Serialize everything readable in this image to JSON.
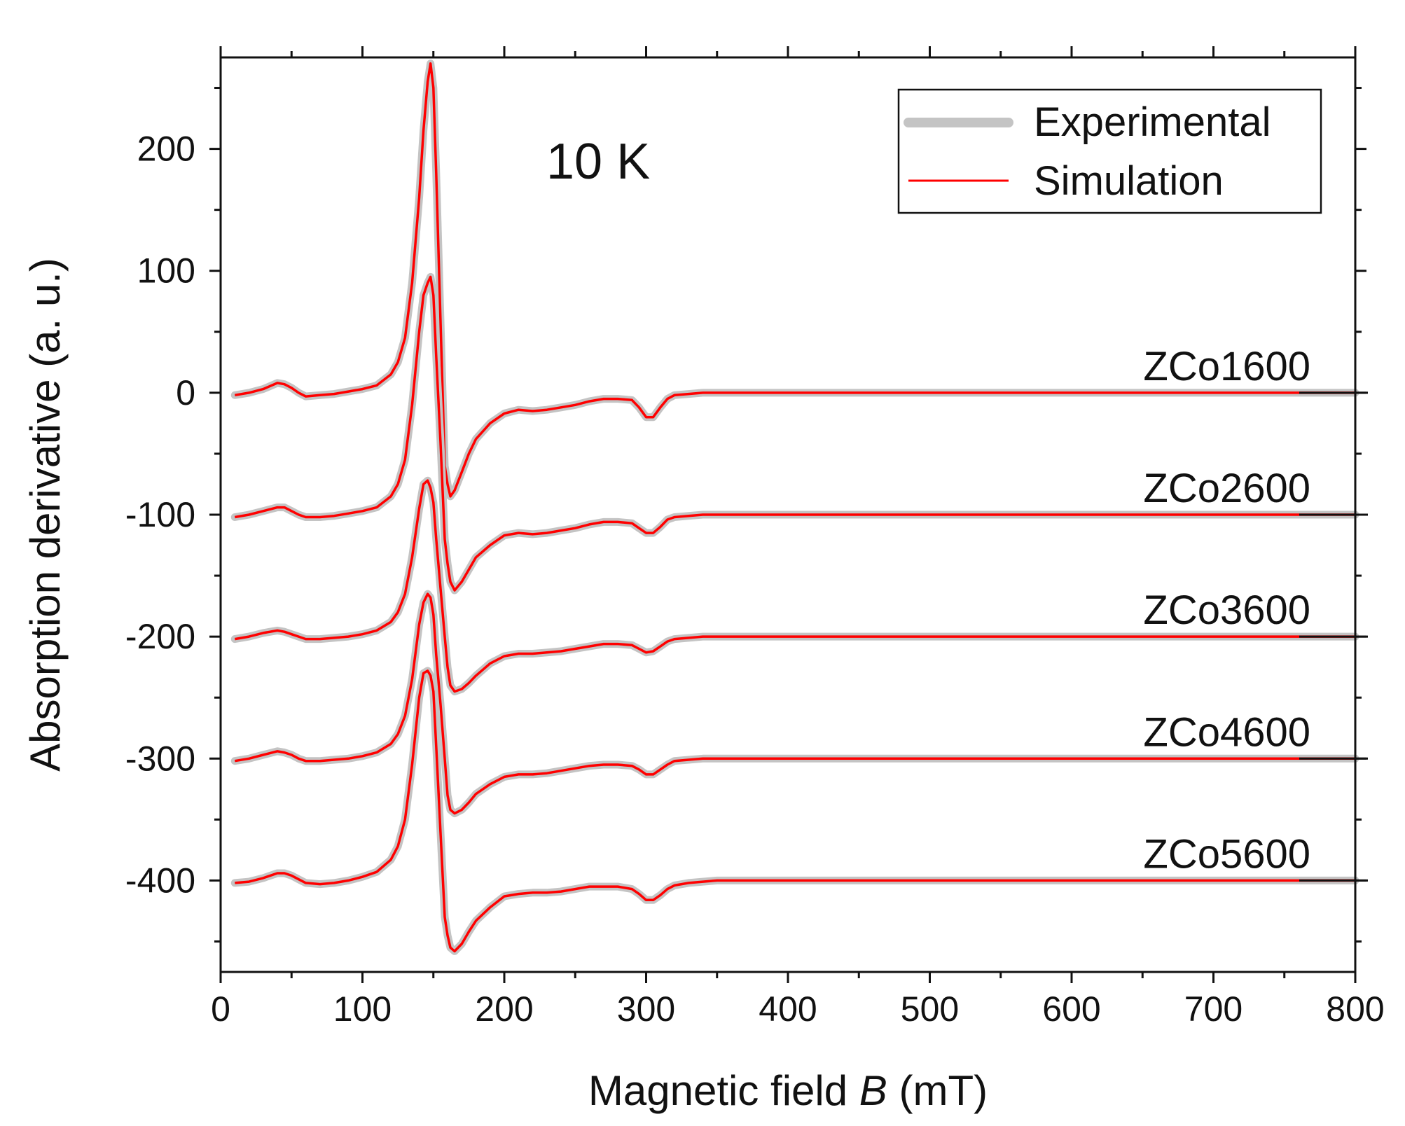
{
  "chart_data": {
    "type": "line",
    "xlabel_prefix": "Magnetic field ",
    "xlabel_var": "B",
    "xlabel_suffix": " (mT)",
    "ylabel": "Absorption derivative (a. u.)",
    "annotation": "10 K",
    "xlim": [
      0,
      800
    ],
    "ylim": [
      -475,
      275
    ],
    "x_ticks": [
      0,
      100,
      200,
      300,
      400,
      500,
      600,
      700,
      800
    ],
    "y_ticks": [
      200,
      100,
      0,
      -100,
      -200,
      -300,
      -400
    ],
    "grid": false,
    "legend_position": "top-right",
    "legend": [
      {
        "label": "Experimental",
        "color": "#c4c4c4"
      },
      {
        "label": "Simulation",
        "color": "#ff0000"
      }
    ],
    "shape_x": [
      10,
      20,
      30,
      40,
      45,
      50,
      55,
      60,
      70,
      80,
      90,
      100,
      110,
      120,
      125,
      130,
      135,
      140,
      143,
      146,
      148,
      150,
      152,
      155,
      158,
      160,
      162,
      165,
      170,
      175,
      180,
      190,
      200,
      210,
      220,
      230,
      240,
      250,
      260,
      270,
      280,
      290,
      295,
      300,
      305,
      310,
      315,
      320,
      330,
      340,
      350,
      400,
      500,
      600,
      700,
      800
    ],
    "series": [
      {
        "label": "ZCo1600",
        "offset": 0,
        "y": [
          -2,
          0,
          3,
          8,
          7,
          4,
          0,
          -3,
          -2,
          -1,
          1,
          3,
          6,
          15,
          25,
          45,
          90,
          160,
          215,
          255,
          270,
          250,
          180,
          60,
          -60,
          -75,
          -85,
          -80,
          -65,
          -50,
          -38,
          -25,
          -17,
          -14,
          -15,
          -14,
          -12,
          -10,
          -7,
          -5,
          -5,
          -6,
          -12,
          -20,
          -20,
          -12,
          -5,
          -2,
          -1,
          0,
          0,
          0,
          0,
          0,
          0,
          0
        ]
      },
      {
        "label": "ZCo2600",
        "offset": -100,
        "y": [
          -2,
          0,
          3,
          6,
          6,
          3,
          0,
          -2,
          -2,
          -1,
          1,
          3,
          6,
          15,
          25,
          45,
          90,
          150,
          180,
          190,
          195,
          180,
          130,
          60,
          -20,
          -40,
          -55,
          -62,
          -55,
          -45,
          -35,
          -25,
          -17,
          -15,
          -16,
          -15,
          -13,
          -11,
          -8,
          -6,
          -6,
          -7,
          -11,
          -15,
          -15,
          -10,
          -4,
          -2,
          -1,
          0,
          0,
          0,
          0,
          0,
          0,
          0
        ]
      },
      {
        "label": "ZCo3600",
        "offset": -200,
        "y": [
          -2,
          0,
          3,
          5,
          4,
          2,
          0,
          -2,
          -2,
          -1,
          0,
          2,
          5,
          12,
          20,
          35,
          65,
          105,
          125,
          128,
          122,
          110,
          80,
          40,
          0,
          -25,
          -40,
          -45,
          -43,
          -38,
          -32,
          -22,
          -16,
          -14,
          -14,
          -13,
          -12,
          -10,
          -8,
          -6,
          -6,
          -7,
          -10,
          -13,
          -12,
          -8,
          -4,
          -2,
          -1,
          0,
          0,
          0,
          0,
          0,
          0,
          0
        ]
      },
      {
        "label": "ZCo4600",
        "offset": -300,
        "y": [
          -2,
          0,
          3,
          6,
          5,
          3,
          0,
          -2,
          -2,
          -1,
          0,
          2,
          5,
          12,
          20,
          35,
          65,
          110,
          128,
          135,
          132,
          118,
          85,
          45,
          0,
          -30,
          -42,
          -45,
          -42,
          -36,
          -29,
          -21,
          -15,
          -13,
          -13,
          -12,
          -10,
          -8,
          -6,
          -5,
          -5,
          -6,
          -9,
          -13,
          -13,
          -9,
          -5,
          -2,
          -1,
          0,
          0,
          0,
          0,
          0,
          0,
          0
        ]
      },
      {
        "label": "ZCo5600",
        "offset": -400,
        "y": [
          -2,
          -1,
          2,
          6,
          6,
          4,
          1,
          -2,
          -3,
          -2,
          0,
          3,
          7,
          17,
          28,
          50,
          95,
          150,
          170,
          172,
          168,
          155,
          110,
          40,
          -30,
          -45,
          -55,
          -58,
          -52,
          -42,
          -33,
          -22,
          -13,
          -11,
          -10,
          -10,
          -9,
          -7,
          -5,
          -5,
          -5,
          -7,
          -11,
          -16,
          -16,
          -12,
          -7,
          -4,
          -2,
          -1,
          0,
          0,
          0,
          0,
          0,
          0
        ]
      }
    ]
  }
}
